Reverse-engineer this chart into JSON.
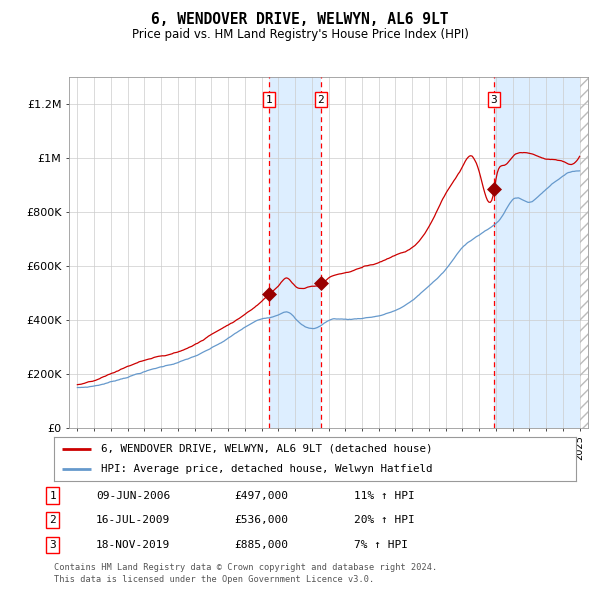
{
  "title": "6, WENDOVER DRIVE, WELWYN, AL6 9LT",
  "subtitle": "Price paid vs. HM Land Registry's House Price Index (HPI)",
  "ylim": [
    0,
    1300000
  ],
  "xlim": [
    1994.5,
    2025.5
  ],
  "yticks": [
    0,
    200000,
    400000,
    600000,
    800000,
    1000000,
    1200000
  ],
  "ytick_labels": [
    "£0",
    "£200K",
    "£400K",
    "£600K",
    "£800K",
    "£1M",
    "£1.2M"
  ],
  "xticks": [
    1995,
    1996,
    1997,
    1998,
    1999,
    2000,
    2001,
    2002,
    2003,
    2004,
    2005,
    2006,
    2007,
    2008,
    2009,
    2010,
    2011,
    2012,
    2013,
    2014,
    2015,
    2016,
    2017,
    2018,
    2019,
    2020,
    2021,
    2022,
    2023,
    2024,
    2025
  ],
  "sale_dates": [
    2006.44,
    2009.54,
    2019.88
  ],
  "sale_prices": [
    497000,
    536000,
    885000
  ],
  "sale_labels": [
    "1",
    "2",
    "3"
  ],
  "sale_info": [
    {
      "num": "1",
      "date": "09-JUN-2006",
      "price": "£497,000",
      "hpi": "11% ↑ HPI"
    },
    {
      "num": "2",
      "date": "16-JUL-2009",
      "price": "£536,000",
      "hpi": "20% ↑ HPI"
    },
    {
      "num": "3",
      "date": "18-NOV-2019",
      "price": "£885,000",
      "hpi": "7% ↑ HPI"
    }
  ],
  "legend_line1": "6, WENDOVER DRIVE, WELWYN, AL6 9LT (detached house)",
  "legend_line2": "HPI: Average price, detached house, Welwyn Hatfield",
  "footer1": "Contains HM Land Registry data © Crown copyright and database right 2024.",
  "footer2": "This data is licensed under the Open Government Licence v3.0.",
  "line_color_red": "#cc0000",
  "line_color_blue": "#6699cc",
  "shade_color": "#ddeeff",
  "grid_color": "#cccccc",
  "bg_color": "#ffffff"
}
